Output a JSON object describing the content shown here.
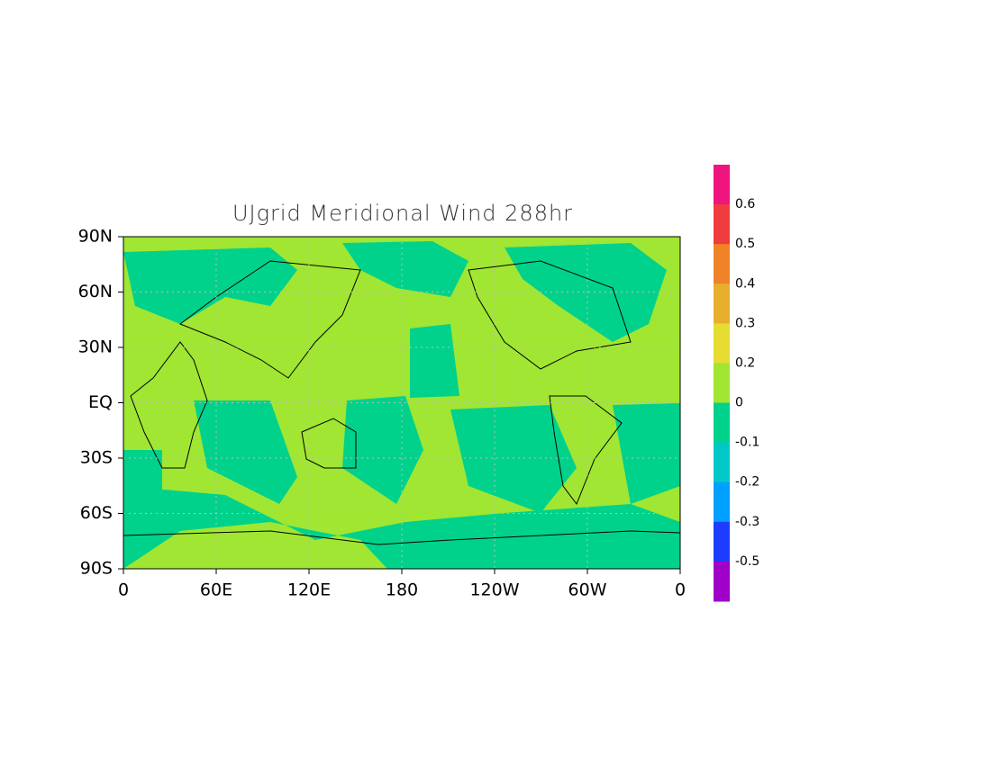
{
  "chart_data": {
    "type": "map",
    "title": "UJgrid Meridional Wind 288hr",
    "xlim": [
      0,
      360
    ],
    "ylim": [
      -90,
      90
    ],
    "xticks": [
      0,
      {
        "value": 60,
        "label": "60E"
      },
      {
        "value": 120,
        "label": "120E"
      },
      180,
      {
        "value": 240,
        "label": "120W"
      },
      {
        "value": 300,
        "label": "60W"
      },
      {
        "value": 360,
        "label": "0"
      }
    ],
    "yticks": [
      {
        "value": 90,
        "label": "90N"
      },
      {
        "value": 60,
        "label": "60N"
      },
      {
        "value": 30,
        "label": "30N"
      },
      {
        "value": 0,
        "label": "EQ"
      },
      {
        "value": -30,
        "label": "30S"
      },
      {
        "value": -60,
        "label": "60S"
      },
      {
        "value": -90,
        "label": "90S"
      }
    ],
    "grid": true,
    "colorbar": {
      "levels": [
        0.6,
        0.5,
        0.4,
        0.3,
        0.2,
        0,
        -0.1,
        -0.2,
        -0.3,
        -0.5
      ],
      "colors": [
        "#f0147f",
        "#f03c3c",
        "#f08228",
        "#e6af2d",
        "#e6dc32",
        "#a0e632",
        "#00d28c",
        "#00c8c8",
        "#00a0ff",
        "#1e3cff",
        "#a000c8"
      ]
    }
  }
}
